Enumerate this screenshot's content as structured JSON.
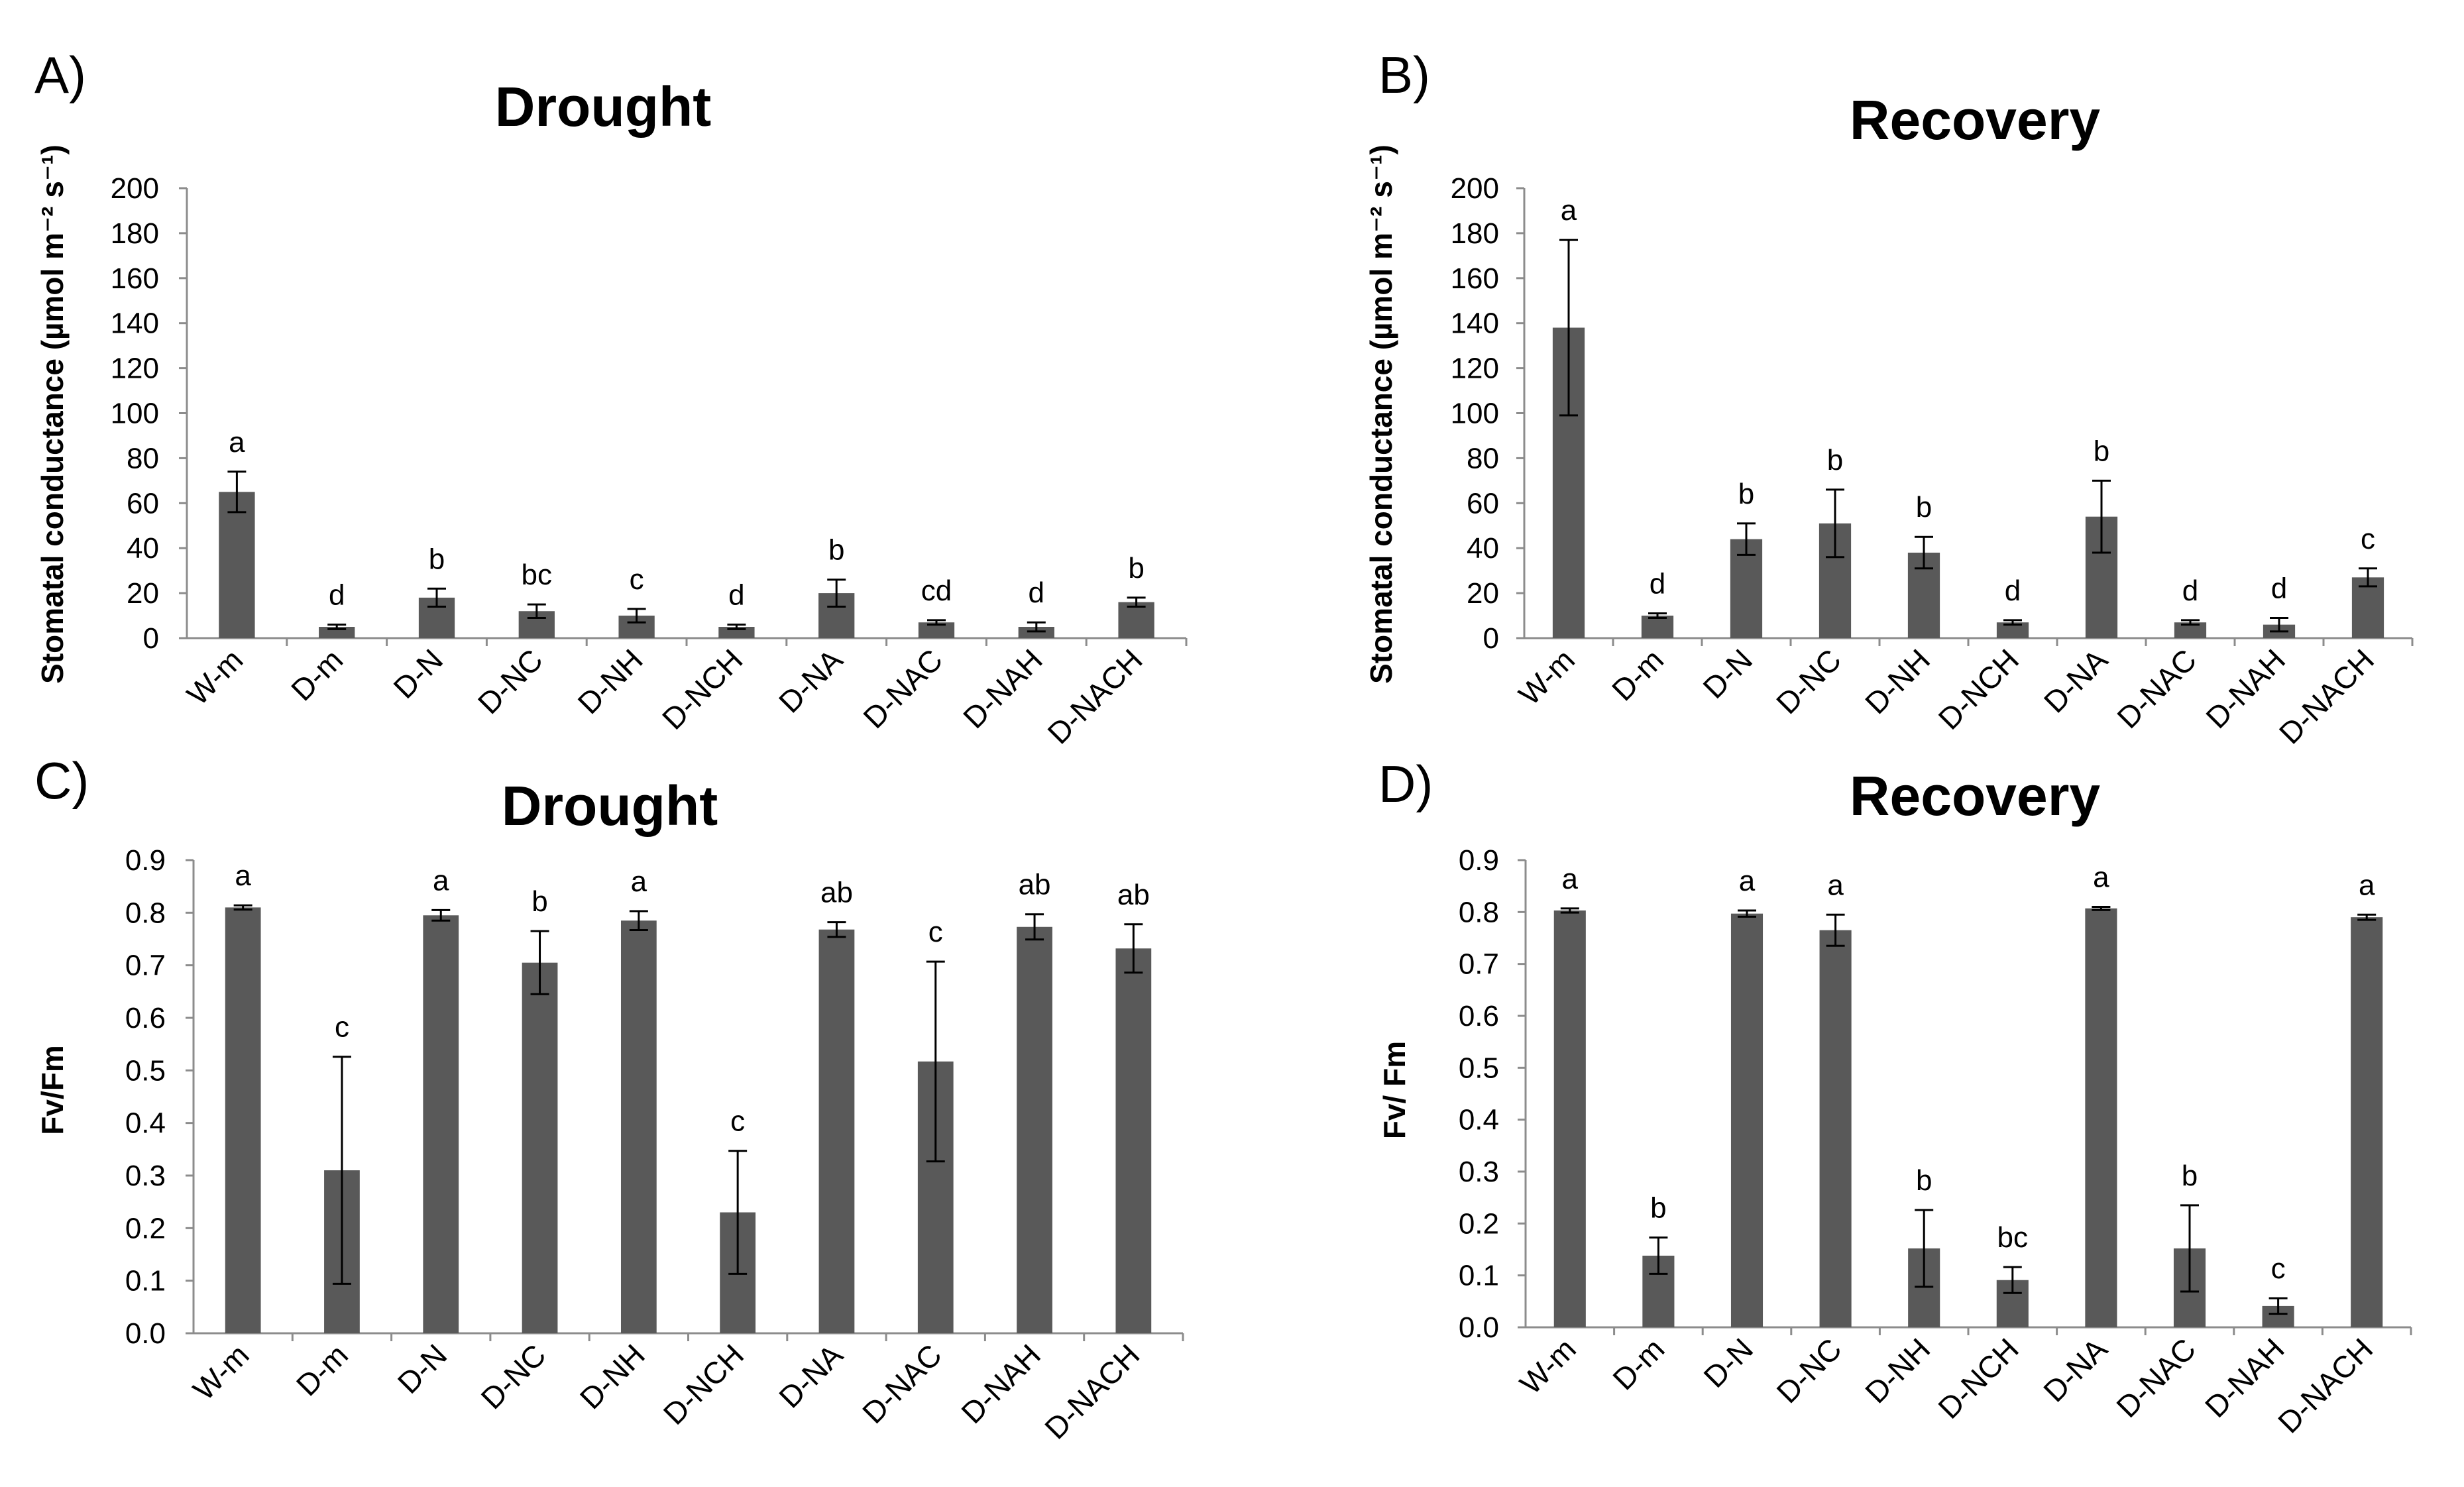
{
  "colors": {
    "bar": "#595959",
    "axis": "#8c8c8c",
    "text": "#000000"
  },
  "chart_data": [
    {
      "panel": "A)",
      "type": "bar",
      "title": "Drought",
      "ylabel": "Stomatal conductance (µmol m⁻² s⁻¹)",
      "ylim": [
        0,
        200
      ],
      "yticks": [
        "0",
        "20",
        "40",
        "60",
        "80",
        "100",
        "120",
        "140",
        "160",
        "180",
        "200"
      ],
      "categories": [
        "W-m",
        "D-m",
        "D-N",
        "D-NC",
        "D-NH",
        "D-NCH",
        "D-NA",
        "D-NAC",
        "D-NAH",
        "D-NACH"
      ],
      "values": [
        65,
        5,
        18,
        12,
        10,
        5,
        20,
        7,
        5,
        16
      ],
      "errors": [
        9,
        1,
        4,
        3,
        3,
        1,
        6,
        1,
        2,
        2
      ],
      "letters": [
        "a",
        "d",
        "b",
        "bc",
        "c",
        "d",
        "b",
        "cd",
        "d",
        "b"
      ]
    },
    {
      "panel": "B)",
      "type": "bar",
      "title": "Recovery",
      "ylabel": "Stomatal conductance (µmol m⁻² s⁻¹)",
      "ylim": [
        0,
        200
      ],
      "yticks": [
        "0",
        "20",
        "40",
        "60",
        "80",
        "100",
        "120",
        "140",
        "160",
        "180",
        "200"
      ],
      "categories": [
        "W-m",
        "D-m",
        "D-N",
        "D-NC",
        "D-NH",
        "D-NCH",
        "D-NA",
        "D-NAC",
        "D-NAH",
        "D-NACH"
      ],
      "values": [
        138,
        10,
        44,
        51,
        38,
        7,
        54,
        7,
        6,
        27
      ],
      "errors": [
        39,
        1,
        7,
        15,
        7,
        1,
        16,
        1,
        3,
        4
      ],
      "letters": [
        "a",
        "d",
        "b",
        "b",
        "b",
        "d",
        "b",
        "d",
        "d",
        "c"
      ]
    },
    {
      "panel": "C)",
      "type": "bar",
      "title": "Drought",
      "ylabel": "Fv/Fm",
      "ylim": [
        0,
        0.9
      ],
      "yticks": [
        "0.0",
        "0.1",
        "0.2",
        "0.3",
        "0.4",
        "0.5",
        "0.6",
        "0.7",
        "0.8",
        "0.9"
      ],
      "categories": [
        "W-m",
        "D-m",
        "D-N",
        "D-NC",
        "D-NH",
        "D-NCH",
        "D-NA",
        "D-NAC",
        "D-NAH",
        "D-NACH"
      ],
      "values": [
        0.81,
        0.31,
        0.795,
        0.705,
        0.785,
        0.23,
        0.768,
        0.517,
        0.773,
        0.732
      ],
      "errors": [
        0.004,
        0.216,
        0.01,
        0.06,
        0.018,
        0.117,
        0.014,
        0.19,
        0.024,
        0.046
      ],
      "letters": [
        "a",
        "c",
        "a",
        "b",
        "a",
        "c",
        "ab",
        "c",
        "ab",
        "ab"
      ]
    },
    {
      "panel": "D)",
      "type": "bar",
      "title": "Recovery",
      "ylabel": "Fv/ Fm",
      "ylim": [
        0,
        0.9
      ],
      "yticks": [
        "0.0",
        "0.1",
        "0.2",
        "0.3",
        "0.4",
        "0.5",
        "0.6",
        "0.7",
        "0.8",
        "0.9"
      ],
      "categories": [
        "W-m",
        "D-m",
        "D-N",
        "D-NC",
        "D-NH",
        "D-NCH",
        "D-NA",
        "D-NAC",
        "D-NAH",
        "D-NACH"
      ],
      "values": [
        0.803,
        0.138,
        0.797,
        0.765,
        0.152,
        0.091,
        0.807,
        0.152,
        0.041,
        0.79
      ],
      "errors": [
        0.004,
        0.035,
        0.006,
        0.03,
        0.074,
        0.025,
        0.003,
        0.083,
        0.015,
        0.005
      ],
      "letters": [
        "a",
        "b",
        "a",
        "a",
        "b",
        "bc",
        "a",
        "b",
        "c",
        "a"
      ]
    }
  ]
}
